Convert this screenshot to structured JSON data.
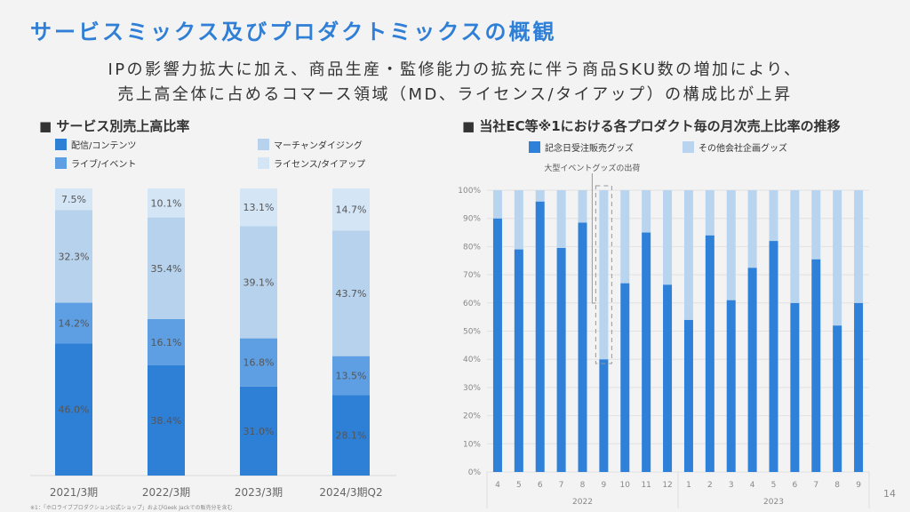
{
  "title": "サービスミックス及びプロダクトミックスの概観",
  "subtitle": [
    "IPの影響力拡大に加え、商品生産・監修能力の拡充に伴う商品SKU数の増加により、",
    "売上高全体に占めるコマース領域（MD、ライセンス/タイアップ）の構成比が上昇"
  ],
  "footnote": "※1：「ホロライブプロダクション公式ショップ」およびGeek Jackでの販売分を含む",
  "page_number": "14",
  "chart_data": [
    {
      "type": "bar",
      "stacked": true,
      "title": "■ サービス別売上高比率",
      "categories": [
        "2021/3期",
        "2022/3期",
        "2023/3期",
        "2024/3期Q2"
      ],
      "series": [
        {
          "name": "配信/コンテンツ",
          "color": "#2e7fd6",
          "values": [
            46.0,
            38.4,
            31.0,
            28.1
          ]
        },
        {
          "name": "ライブ/イベント",
          "color": "#5e9ee2",
          "values": [
            14.2,
            16.1,
            16.8,
            13.5
          ]
        },
        {
          "name": "マーチャンダイジング",
          "color": "#b7d2ec",
          "values": [
            32.3,
            35.4,
            39.1,
            43.7
          ]
        },
        {
          "name": "ライセンス/タイアップ",
          "color": "#d4e5f5",
          "values": [
            7.5,
            10.1,
            13.1,
            14.7
          ]
        }
      ],
      "unit": "%"
    },
    {
      "type": "bar",
      "stacked": true,
      "title": "■ 当社EC等※1における各プロダクト毎の月次売上比率の推移",
      "categories": [
        "4",
        "5",
        "6",
        "7",
        "8",
        "9",
        "10",
        "11",
        "12",
        "1",
        "2",
        "3",
        "4",
        "5",
        "6",
        "7",
        "8",
        "9"
      ],
      "years": [
        {
          "label": "2022",
          "count": 9
        },
        {
          "label": "2023",
          "count": 9
        }
      ],
      "yticks": [
        "0%",
        "10%",
        "20%",
        "30%",
        "40%",
        "50%",
        "60%",
        "70%",
        "80%",
        "90%",
        "100%"
      ],
      "ylim": [
        0,
        100
      ],
      "series": [
        {
          "name": "記念日受注販売グッズ",
          "color": "#2e80d8",
          "values": [
            90,
            79,
            96,
            79.5,
            88.5,
            40,
            67,
            85,
            66.5,
            54,
            84,
            61,
            72.5,
            82,
            60,
            75.5,
            52,
            60
          ]
        },
        {
          "name": "その他会社企画グッズ",
          "color": "#b8d4ee",
          "values": [
            10,
            21,
            4,
            20.5,
            11.5,
            60,
            33,
            15,
            33.5,
            46,
            16,
            39,
            27.5,
            18,
            40,
            24.5,
            48,
            40
          ]
        }
      ],
      "annotation": "大型イベントグッズの出荷"
    }
  ]
}
